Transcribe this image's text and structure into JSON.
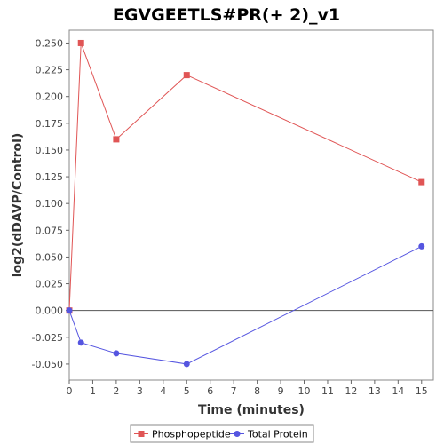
{
  "chart_data": {
    "type": "line",
    "title": "EGVGEETLS#PR(+ 2)_v1",
    "xlabel": "Time (minutes)",
    "ylabel": "log2(dDAVP/Control)",
    "xlim": [
      0,
      15.5
    ],
    "ylim": [
      -0.065,
      0.262
    ],
    "x_ticks": [
      0,
      1,
      2,
      3,
      4,
      5,
      6,
      7,
      8,
      9,
      10,
      11,
      12,
      13,
      14,
      15
    ],
    "x_tick_labels": [
      "0",
      "1",
      "2",
      "3",
      "4",
      "5",
      "6",
      "7",
      "8",
      "9",
      "10",
      "11",
      "12",
      "13",
      "14",
      "15"
    ],
    "y_ticks": [
      -0.05,
      -0.025,
      0,
      0.025,
      0.05,
      0.075,
      0.1,
      0.125,
      0.15,
      0.175,
      0.2,
      0.225,
      0.25
    ],
    "y_tick_labels": [
      "-0.050",
      "-0.025",
      "0.000",
      "0.025",
      "0.050",
      "0.075",
      "0.100",
      "0.125",
      "0.150",
      "0.175",
      "0.200",
      "0.225",
      "0.250"
    ],
    "grid": false,
    "legend_position": "bottom",
    "series": [
      {
        "name": "Phosphopeptide",
        "color": "#e05555",
        "marker": "square",
        "x": [
          0,
          0.5,
          2,
          5,
          15
        ],
        "y": [
          0.0,
          0.25,
          0.16,
          0.22,
          0.12
        ]
      },
      {
        "name": "Total Protein",
        "color": "#5555e0",
        "marker": "circle",
        "x": [
          0,
          0.5,
          2,
          5,
          15
        ],
        "y": [
          0.0,
          -0.03,
          -0.04,
          -0.05,
          0.06
        ]
      }
    ]
  }
}
